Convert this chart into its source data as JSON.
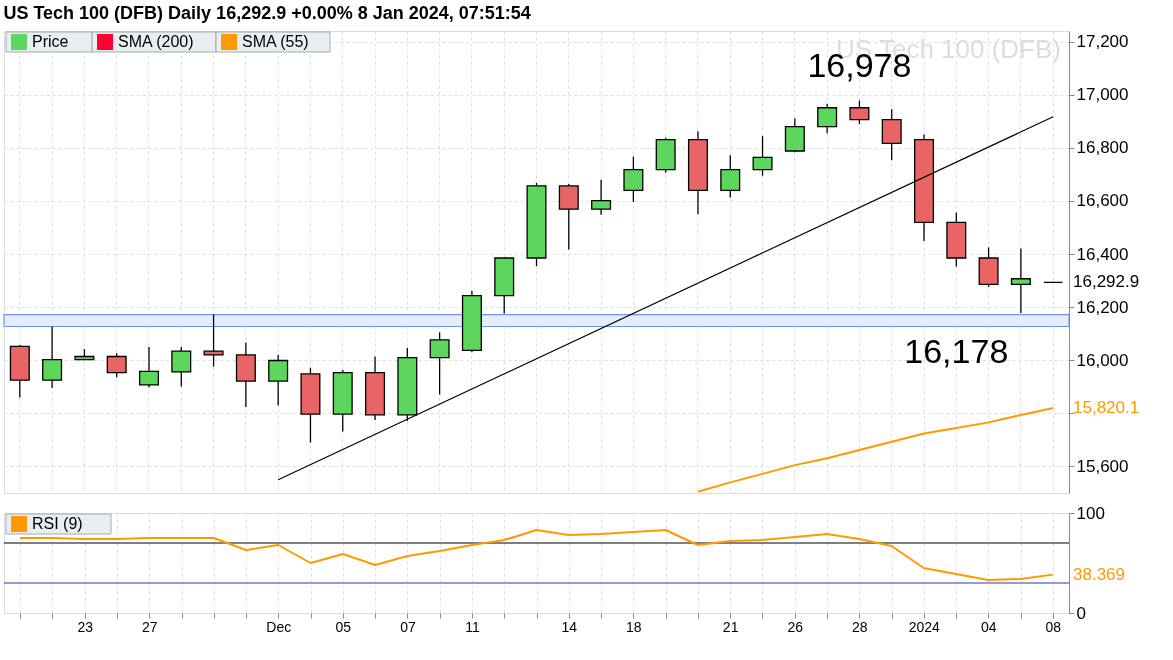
{
  "chart_data": [
    {
      "type": "candlestick",
      "title": "US Tech 100 (DFB) Daily 16,292.9 +0.00% 8 Jan 2024, 07:51:54",
      "categories": [
        null,
        null,
        "23",
        null,
        "27",
        null,
        null,
        null,
        "Dec",
        null,
        "05",
        null,
        "07",
        null,
        "11",
        null,
        null,
        "14",
        null,
        "18",
        null,
        null,
        "21",
        null,
        "26",
        null,
        "28",
        null,
        "2024",
        null,
        "04",
        null,
        "08"
      ],
      "series": [
        {
          "name": "Price",
          "type": "candlestick",
          "colors": [
            "#e96464",
            "#5cd65c",
            "#5cd65c",
            "#e96464",
            "#5cd65c",
            "#5cd65c",
            "#e96464",
            "#e96464",
            "#5cd65c",
            "#e96464",
            "#5cd65c",
            "#e96464",
            "#5cd65c",
            "#5cd65c",
            "#5cd65c",
            "#5cd65c",
            "#5cd65c",
            "#e96464",
            "#5cd65c",
            "#5cd65c",
            "#5cd65c",
            "#e96464",
            "#5cd65c",
            "#5cd65c",
            "#5cd65c",
            "#5cd65c",
            "#e96464",
            "#e96464",
            "#e96464",
            "#e96464",
            "#e96464",
            "#5cd65c",
            "#000000"
          ],
          "value_labels": [
            null,
            null,
            null,
            null,
            null,
            null,
            null,
            null,
            null,
            null,
            null,
            null,
            null,
            null,
            null,
            null,
            null,
            null,
            null,
            null,
            null,
            null,
            null,
            null,
            null,
            null,
            null,
            null,
            null,
            null,
            null,
            null,
            "16,292.9"
          ],
          "ohlc": [
            [
              16052,
              16057,
              15860,
              15925
            ],
            [
              15925,
              16127,
              15895,
              16002
            ],
            [
              16002,
              16042,
              16002,
              16014
            ],
            [
              16014,
              16026,
              15936,
              15953
            ],
            [
              15907,
              16050,
              15898,
              15958
            ],
            [
              15956,
              16050,
              15901,
              16034
            ],
            [
              16034,
              16172,
              15976,
              16020
            ],
            [
              16020,
              16067,
              15824,
              15921
            ],
            [
              15921,
              16021,
              15830,
              15999
            ],
            [
              15949,
              15972,
              15690,
              15797
            ],
            [
              15797,
              15963,
              15732,
              15953
            ],
            [
              15953,
              16014,
              15775,
              15794
            ],
            [
              15794,
              16046,
              15771,
              16010
            ],
            [
              16010,
              16105,
              15871,
              16077
            ],
            [
              16037,
              16261,
              16030,
              16243
            ],
            [
              16243,
              16389,
              16176,
              16385
            ],
            [
              16385,
              16668,
              16355,
              16657
            ],
            [
              16657,
              16664,
              16417,
              16569
            ],
            [
              16569,
              16680,
              16548,
              16601
            ],
            [
              16640,
              16767,
              16596,
              16718
            ],
            [
              16718,
              16838,
              16706,
              16831
            ],
            [
              16831,
              16862,
              16550,
              16640
            ],
            [
              16640,
              16772,
              16613,
              16718
            ],
            [
              16718,
              16844,
              16695,
              16764
            ],
            [
              16788,
              16910,
              16783,
              16880
            ],
            [
              16880,
              16966,
              16855,
              16951
            ],
            [
              16951,
              16978,
              16890,
              16906
            ],
            [
              16906,
              16945,
              16753,
              16817
            ],
            [
              16831,
              16850,
              16449,
              16519
            ],
            [
              16519,
              16556,
              16353,
              16385
            ],
            [
              16385,
              16425,
              16276,
              16286
            ],
            [
              16286,
              16421,
              16178,
              16307
            ],
            [
              16292.9,
              16292.9,
              16292.9,
              16292.9
            ]
          ]
        },
        {
          "name": "SMA (200)",
          "type": "line",
          "color": "#ff0033",
          "values": [
            null,
            null,
            null,
            null,
            null,
            null,
            null,
            null,
            null,
            null,
            null,
            null,
            null,
            null,
            null,
            null,
            null,
            null,
            null,
            null,
            null,
            null,
            null,
            null,
            null,
            null,
            null,
            null,
            null,
            null,
            null,
            null,
            null
          ]
        },
        {
          "name": "SMA (55)",
          "type": "line",
          "color": "#ff9900",
          "values": [
            null,
            null,
            null,
            null,
            null,
            null,
            null,
            null,
            null,
            null,
            null,
            null,
            null,
            null,
            null,
            null,
            null,
            null,
            null,
            null,
            null,
            15505,
            15540,
            15572,
            15605,
            15631,
            15662,
            15693,
            15724,
            15745,
            15766,
            15794,
            15820.1
          ],
          "value_labels": [
            null,
            null,
            null,
            null,
            null,
            null,
            null,
            null,
            null,
            null,
            null,
            null,
            null,
            null,
            null,
            null,
            null,
            null,
            null,
            null,
            null,
            null,
            null,
            null,
            null,
            null,
            null,
            null,
            null,
            null,
            null,
            null,
            "15,820.1"
          ]
        },
        {
          "type": "line",
          "color": "#000000",
          "x": [
            "Dec",
            "08"
          ],
          "values": [
            15550,
            16917
          ]
        }
      ],
      "ylim": [
        15500,
        17240
      ],
      "yticks": [
        {
          "value": 15600,
          "label": "15,600"
        },
        {
          "value": 15800,
          "label": null
        },
        {
          "value": 16000,
          "label": "16,000"
        },
        {
          "value": 16200,
          "label": "16,200"
        },
        {
          "value": 16400,
          "label": "16,400"
        },
        {
          "value": 16600,
          "label": "16,600"
        },
        {
          "value": 16800,
          "label": "16,800"
        },
        {
          "value": 17000,
          "label": "17,000"
        },
        {
          "value": 17200,
          "label": "17,200"
        }
      ],
      "bands": [
        {
          "axis": "y",
          "from": 16127,
          "to": 16172,
          "color": "#e6ecff"
        }
      ],
      "annotations": [
        "US Tech 100 (DFB)",
        {
          "text": "16,978",
          "x": "28",
          "y": 16978
        },
        {
          "text": "16,178",
          "y": 16178
        }
      ],
      "grid": true,
      "legend": "top left",
      "tick_labels": "y"
    },
    {
      "type": "line",
      "categories": [
        null,
        null,
        "23",
        null,
        "27",
        null,
        null,
        null,
        "Dec",
        null,
        "05",
        null,
        "07",
        null,
        "11",
        null,
        null,
        "14",
        null,
        "18",
        null,
        null,
        "21",
        null,
        "26",
        null,
        "28",
        null,
        "2024",
        null,
        "04",
        null,
        "08"
      ],
      "series": [
        {
          "name": "RSI (9)",
          "color": "#ff9900",
          "values": [
            75,
            75,
            74,
            74,
            75,
            75,
            75,
            63,
            68,
            50,
            59,
            48,
            57,
            62,
            68,
            73,
            83,
            78,
            79,
            81,
            83,
            68,
            72,
            73,
            76,
            79,
            74,
            67,
            45,
            39,
            33,
            34,
            38.369
          ],
          "value_labels": [
            null,
            null,
            null,
            null,
            null,
            null,
            null,
            null,
            null,
            null,
            null,
            null,
            null,
            null,
            null,
            null,
            null,
            null,
            null,
            null,
            null,
            null,
            null,
            null,
            null,
            null,
            null,
            null,
            null,
            null,
            null,
            null,
            "38.369"
          ]
        }
      ],
      "ylim": [
        0,
        100
      ],
      "yticks": [
        0,
        100
      ],
      "ref_lines": [
        {
          "axis": "y",
          "value": 70,
          "color": "#000000"
        },
        {
          "axis": "y",
          "value": 30,
          "color": "#3333aa"
        }
      ],
      "grid": true,
      "legend": "top left"
    }
  ]
}
